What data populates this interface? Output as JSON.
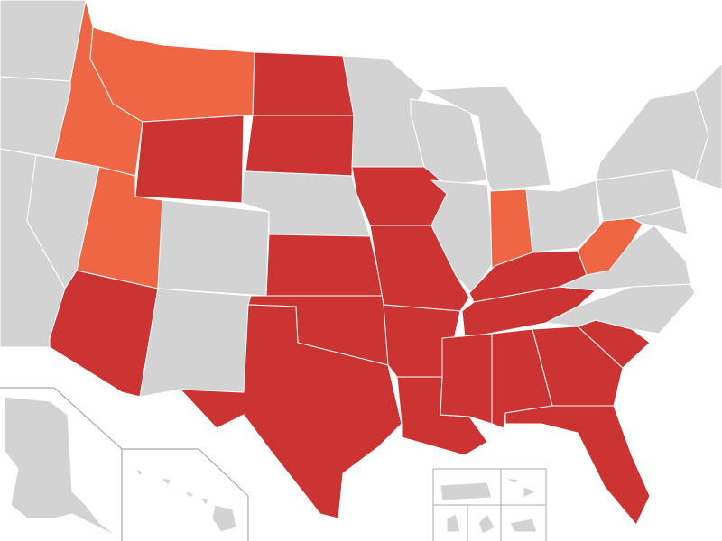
{
  "map": {
    "colors": {
      "group_dark": "#CC3333",
      "group_light": "#EE6644",
      "other": "#D3D3D3"
    },
    "states": {
      "washington": "other",
      "oregon": "other",
      "california": "other",
      "nevada": "other",
      "idaho": "group_light",
      "montana": "group_light",
      "wyoming": "group_dark",
      "utah": "group_light",
      "arizona": "group_dark",
      "colorado": "other",
      "new-mexico": "other",
      "north-dakota": "group_dark",
      "south-dakota": "group_dark",
      "nebraska": "other",
      "kansas": "group_dark",
      "oklahoma": "group_dark",
      "texas": "group_dark",
      "minnesota": "other",
      "iowa": "group_dark",
      "missouri": "group_dark",
      "arkansas": "group_dark",
      "louisiana": "group_dark",
      "wisconsin": "other",
      "illinois": "other",
      "michigan": "other",
      "indiana": "group_light",
      "ohio": "other",
      "kentucky": "group_dark",
      "tennessee": "group_dark",
      "mississippi": "group_dark",
      "alabama": "group_dark",
      "georgia": "group_dark",
      "florida": "group_dark",
      "south-carolina": "group_dark",
      "north-carolina": "other",
      "virginia": "other",
      "west-virginia": "group_light",
      "pennsylvania": "other",
      "new-york": "other",
      "maryland": "other",
      "new-england": "other",
      "alaska": "other",
      "hawaii": "other",
      "puerto-rico": "other",
      "virgin-islands": "other",
      "guam": "other",
      "northern-mariana-islands": "other",
      "american-samoa": "other"
    }
  }
}
